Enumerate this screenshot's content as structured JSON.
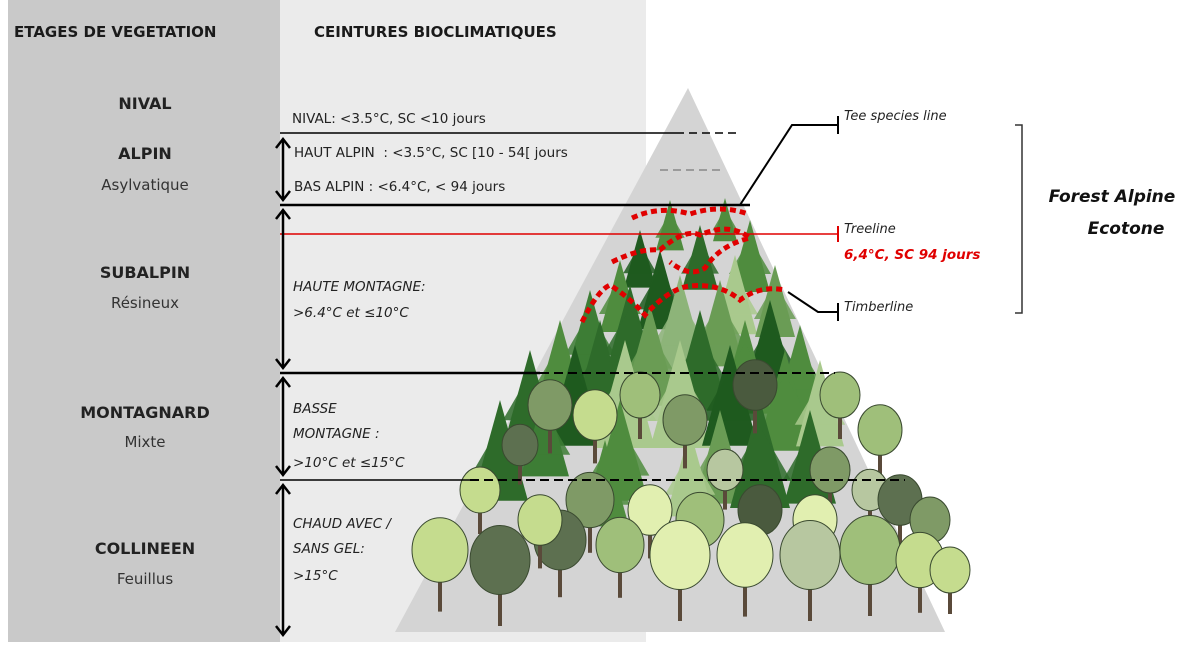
{
  "headers": {
    "vegetation": "ETAGES DE VEGETATION",
    "bioclimatic": "CEINTURES BIOCLIMATIQUES"
  },
  "levels": [
    {
      "name": "NIVAL"
    },
    {
      "name": "ALPIN",
      "subtitle": "Asylvatique"
    },
    {
      "name": "SUBALPIN",
      "subtitle": "Résineux"
    },
    {
      "name": "MONTAGNARD",
      "subtitle": "Mixte"
    },
    {
      "name": "COLLINEEN",
      "subtitle": "Feuillus"
    }
  ],
  "belts": [
    "NIVAL: <3.5°C, SC <10 jours",
    "HAUT ALPIN  : <3.5°C, SC [10 - 54[ jours",
    "BAS ALPIN : <6.4°C, < 94 jours"
  ],
  "belts_italic": [
    [
      "HAUTE MONTAGNE:",
      ">6.4°C et ≤10°C"
    ],
    [
      "BASSE",
      "MONTAGNE :",
      ">10°C et ≤15°C"
    ],
    [
      "CHAUD AVEC /",
      "SANS GEL:",
      ">15°C"
    ]
  ],
  "lines": {
    "tree_species_line": "Tee species line",
    "treeline": "Treeline",
    "treeline_condition": "6,4°C, SC 94 jours",
    "timberline": "Timberline"
  },
  "ecotone": [
    "Forest Alpine",
    "Ecotone"
  ]
}
